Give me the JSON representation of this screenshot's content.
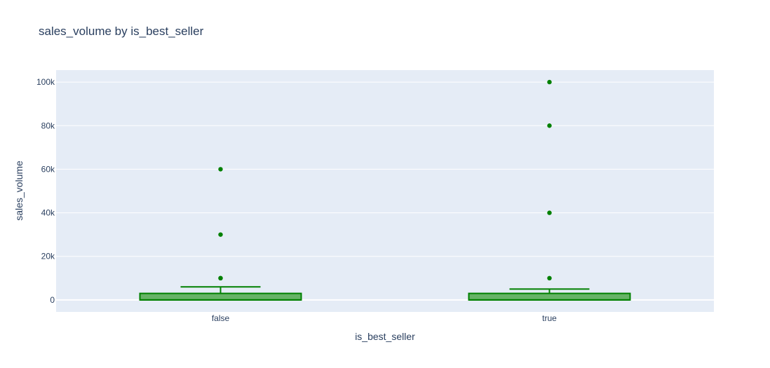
{
  "chart_data": {
    "type": "box",
    "title": "sales_volume by is_best_seller",
    "xlabel": "is_best_seller",
    "ylabel": "sales_volume",
    "categories": [
      "false",
      "true"
    ],
    "ylim": [
      -5500,
      105500
    ],
    "yticks": [
      0,
      20000,
      40000,
      60000,
      80000,
      100000
    ],
    "ytick_labels": [
      "0",
      "20k",
      "40k",
      "60k",
      "80k",
      "100k"
    ],
    "grid": true,
    "boxes": [
      {
        "category": "false",
        "min": 0,
        "q1": 0,
        "median": 0,
        "q3": 3000,
        "upper_fence": 6000,
        "outliers": [
          10000,
          10000,
          30000,
          60000
        ]
      },
      {
        "category": "true",
        "min": 0,
        "q1": 0,
        "median": 0,
        "q3": 3000,
        "upper_fence": 5000,
        "outliers": [
          10000,
          40000,
          80000,
          100000
        ]
      }
    ],
    "colors": {
      "plot_background": "#e5ecf6",
      "grid": "#ffffff",
      "box_line": "#008000",
      "box_fill": "#66b366",
      "text": "#2a3f5f"
    }
  }
}
